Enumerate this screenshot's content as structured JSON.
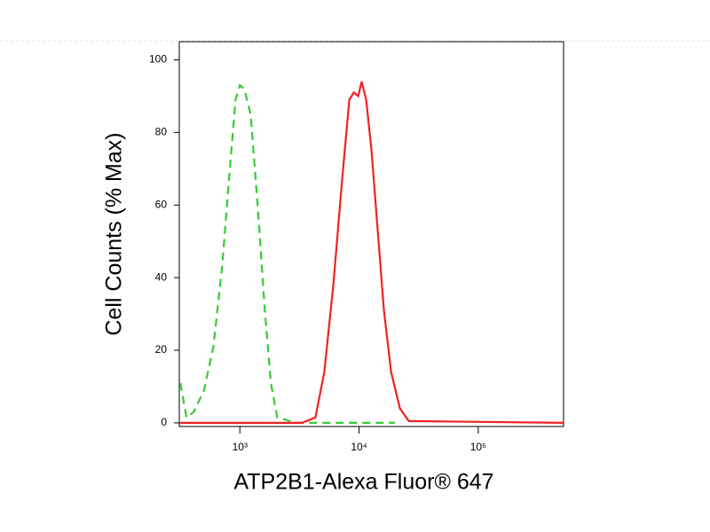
{
  "chart_data": {
    "type": "line",
    "xlabel": "ATP2B1-Alexa Fluor® 647",
    "ylabel": "Cell Counts (% Max)",
    "xscale": "log",
    "xlim": [
      310,
      520000
    ],
    "ylim": [
      -1,
      105
    ],
    "xticks": [
      {
        "value": 1000,
        "label": "10³"
      },
      {
        "value": 10000,
        "label": "10⁴"
      },
      {
        "value": 100000,
        "label": "10⁵"
      }
    ],
    "yticks": [
      0,
      20,
      40,
      60,
      80,
      100
    ],
    "series": [
      {
        "color": "#33cc33",
        "dash": true,
        "x": [
          316,
          357,
          410,
          500,
          600,
          710,
          810,
          920,
          1000,
          1090,
          1230,
          1410,
          1620,
          1820,
          2060,
          3000,
          20000
        ],
        "values": [
          11,
          1.5,
          3,
          9,
          21,
          43,
          67,
          89,
          93,
          92,
          85,
          60,
          31,
          11,
          1.5,
          0,
          0
        ]
      },
      {
        "color": "#ee2222",
        "dash": false,
        "x": [
          310,
          3330,
          4300,
          5110,
          6080,
          7210,
          8280,
          9020,
          9840,
          10520,
          11480,
          12710,
          14350,
          16180,
          18570,
          22030,
          26200,
          520000
        ],
        "values": [
          0,
          0,
          1.5,
          14,
          38,
          67,
          89,
          91,
          90,
          94,
          89,
          75,
          53,
          31,
          14,
          4,
          0.5,
          0
        ]
      }
    ]
  }
}
